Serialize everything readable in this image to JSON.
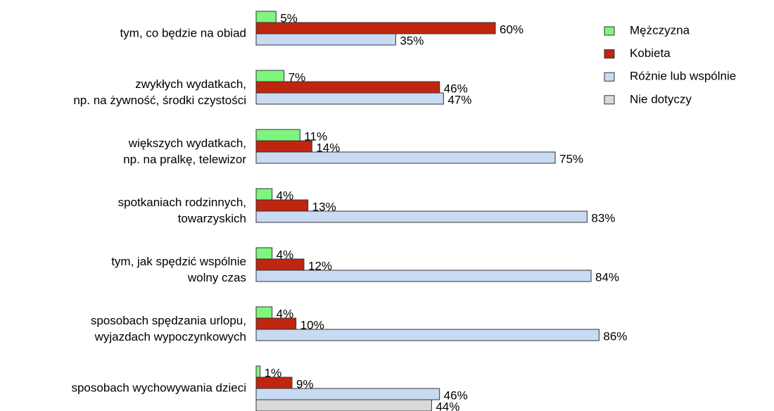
{
  "chart_data": {
    "type": "bar",
    "orientation": "horizontal",
    "categories": [
      [
        "tym, co będzie na obiad"
      ],
      [
        "zwykłych wydatkach,",
        "np. na żywność, środki czystości"
      ],
      [
        "większych wydatkach,",
        "np. na pralkę, telewizor"
      ],
      [
        "spotkaniach rodzinnych,",
        "towarzyskich"
      ],
      [
        "tym, jak spędzić wspólnie",
        "wolny czas"
      ],
      [
        "sposobach spędzania urlopu,",
        "wyjazdach wypoczynkowych"
      ],
      [
        "sposobach wychowywania dzieci"
      ]
    ],
    "series": [
      {
        "name": "Mężczyzna",
        "color": "#7ff57f",
        "values": [
          5,
          7,
          11,
          4,
          4,
          4,
          1
        ],
        "value_labels": [
          "5%",
          "7%",
          "11%",
          "4%",
          "4%",
          "4%",
          "1%"
        ]
      },
      {
        "name": "Kobieta",
        "color": "#c0250f",
        "values": [
          60,
          46,
          14,
          13,
          12,
          10,
          9
        ],
        "value_labels": [
          "60%",
          "46%",
          "14%",
          "13%",
          "12%",
          "10%",
          "9%"
        ]
      },
      {
        "name": "Różnie lub wspólnie",
        "color": "#c9daf3",
        "values": [
          35,
          47,
          75,
          83,
          84,
          86,
          46
        ],
        "value_labels": [
          "35%",
          "47%",
          "75%",
          "83%",
          "84%",
          "86%",
          "46%"
        ]
      },
      {
        "name": "Nie dotyczy",
        "color": "#d9d9d9",
        "values": [
          null,
          null,
          null,
          null,
          null,
          null,
          44
        ],
        "value_labels": [
          null,
          null,
          null,
          null,
          null,
          null,
          "44%"
        ]
      }
    ],
    "xlim": [
      0,
      100
    ]
  }
}
